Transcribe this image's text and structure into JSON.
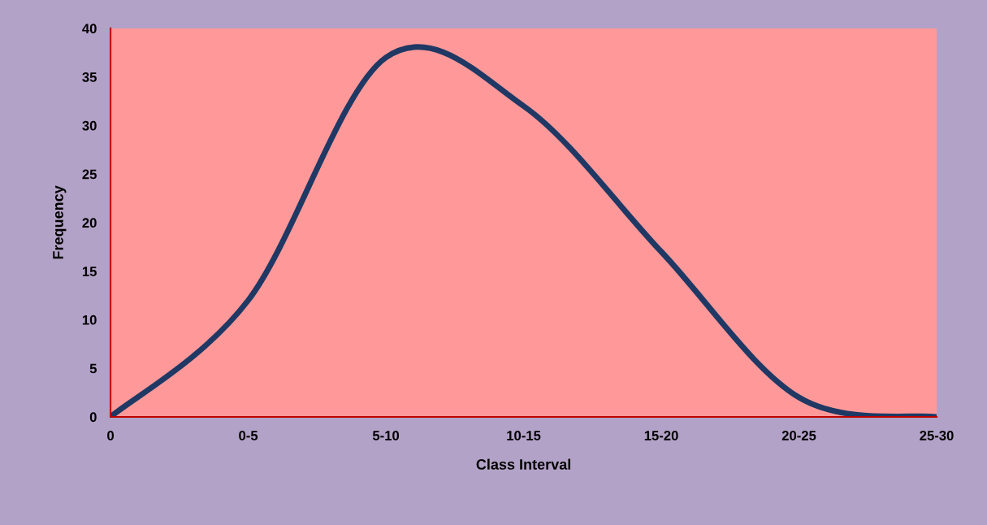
{
  "chart_data": {
    "type": "line",
    "xlabel": "Class Interval",
    "ylabel": "Frequency",
    "categories": [
      "0",
      "0-5",
      "5-10",
      "10-15",
      "15-20",
      "20-25",
      "25-30"
    ],
    "values": [
      0,
      12,
      37,
      32,
      17,
      2,
      0
    ],
    "color": "#1f3864",
    "ylim": [
      0,
      40
    ],
    "yticks": [
      0,
      5,
      10,
      15,
      20,
      25,
      30,
      35,
      40
    ],
    "grid": false,
    "marker": "none",
    "line_style": "solid"
  }
}
